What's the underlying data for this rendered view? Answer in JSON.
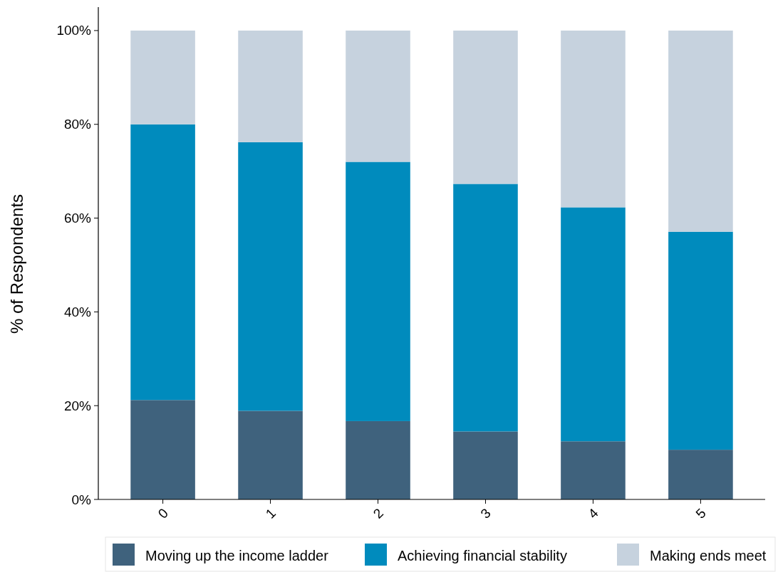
{
  "chart_data": {
    "type": "bar",
    "stacked": true,
    "ylabel": "% of Respondents",
    "categories": [
      "0",
      "1",
      "2",
      "3",
      "4",
      "5"
    ],
    "series": [
      {
        "name": "Moving up the income ladder",
        "color": "#3f627d",
        "values": [
          21.2,
          18.9,
          16.7,
          14.5,
          12.4,
          10.6
        ]
      },
      {
        "name": "Achieving financial stability",
        "color": "#008bbd",
        "values": [
          58.8,
          57.3,
          55.3,
          52.8,
          49.9,
          46.5
        ]
      },
      {
        "name": "Making ends meet",
        "color": "#c6d2de",
        "values": [
          20.0,
          23.8,
          28.0,
          32.7,
          37.7,
          42.9
        ]
      }
    ],
    "ylim": [
      0,
      105
    ],
    "yticks": [
      {
        "value": 0,
        "label": "0%"
      },
      {
        "value": 20,
        "label": "20%"
      },
      {
        "value": 40,
        "label": "40%"
      },
      {
        "value": 60,
        "label": "60%"
      },
      {
        "value": 80,
        "label": "80%"
      },
      {
        "value": 100,
        "label": "100%"
      }
    ],
    "grid": false,
    "legend": "bottom"
  }
}
